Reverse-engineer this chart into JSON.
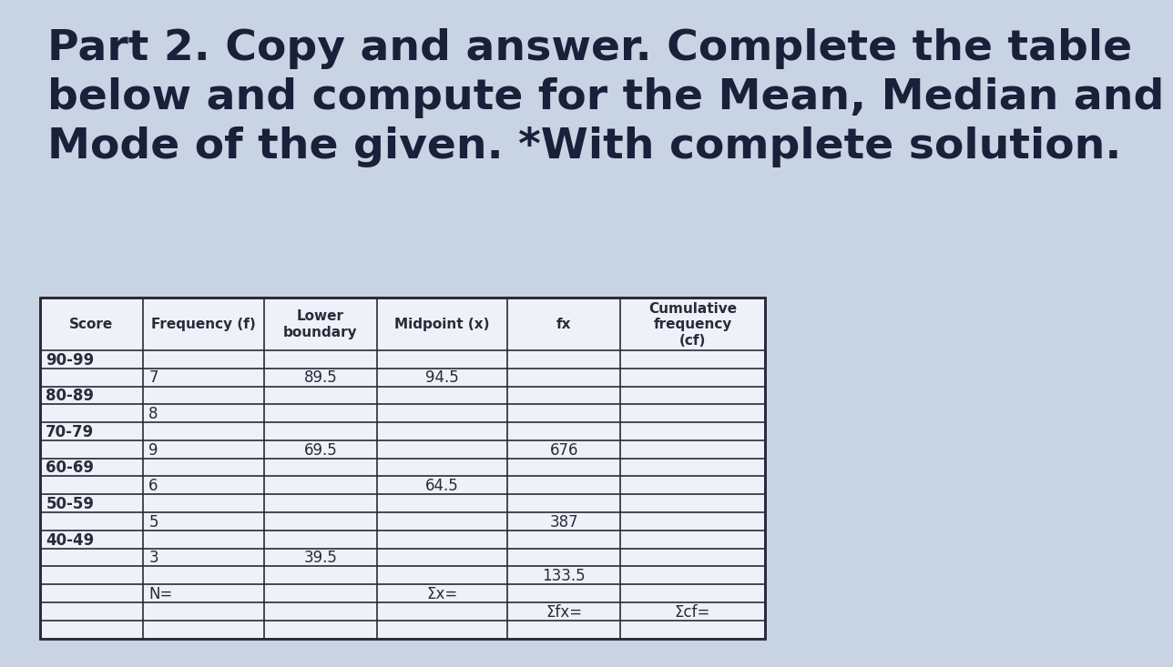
{
  "title_lines": [
    "Part 2. Copy and answer. Complete the table",
    "below and compute for the Mean, Median and",
    "Mode of the given. *With complete solution."
  ],
  "bg_color": "#c8d4e3",
  "title_color": "#1a1f3a",
  "table_header": [
    "Score",
    "Frequency (f)",
    "Lower\nboundary",
    "Midpoint (x)",
    "fx",
    "Cumulative\nfrequency\n(cf)"
  ],
  "row_pairs": [
    [
      [
        "90-99",
        "",
        "",
        "",
        "",
        ""
      ],
      [
        "",
        "7",
        "89.5",
        "94.5",
        "",
        ""
      ]
    ],
    [
      [
        "80-89",
        "",
        "",
        "",
        "",
        ""
      ],
      [
        "",
        "8",
        "",
        "",
        "",
        ""
      ]
    ],
    [
      [
        "70-79",
        "",
        "",
        "",
        "",
        ""
      ],
      [
        "",
        "9",
        "69.5",
        "",
        "676",
        ""
      ]
    ],
    [
      [
        "60-69",
        "",
        "",
        "",
        "",
        ""
      ],
      [
        "",
        "6",
        "",
        "64.5",
        "",
        ""
      ]
    ],
    [
      [
        "50-59",
        "",
        "",
        "",
        "",
        ""
      ],
      [
        "",
        "5",
        "",
        "",
        "387",
        ""
      ]
    ],
    [
      [
        "40-49",
        "",
        "",
        "",
        "",
        ""
      ],
      [
        "",
        "3",
        "39.5",
        "",
        "",
        ""
      ]
    ],
    [
      [
        "",
        "",
        "",
        "",
        "133.5",
        ""
      ],
      [
        "",
        "N=",
        "",
        "Σx=",
        "",
        ""
      ]
    ],
    [
      [
        "",
        "",
        "",
        "",
        "Σfx=",
        "Σcf="
      ],
      [
        "",
        "",
        "",
        "",
        "",
        ""
      ]
    ]
  ],
  "col_widths_rel": [
    1.1,
    1.3,
    1.2,
    1.4,
    1.2,
    1.55
  ],
  "table_bg": "#eef2f8",
  "line_color": "#2a2a3a",
  "font_size_title": 34,
  "font_size_header": 11,
  "font_size_data": 12
}
